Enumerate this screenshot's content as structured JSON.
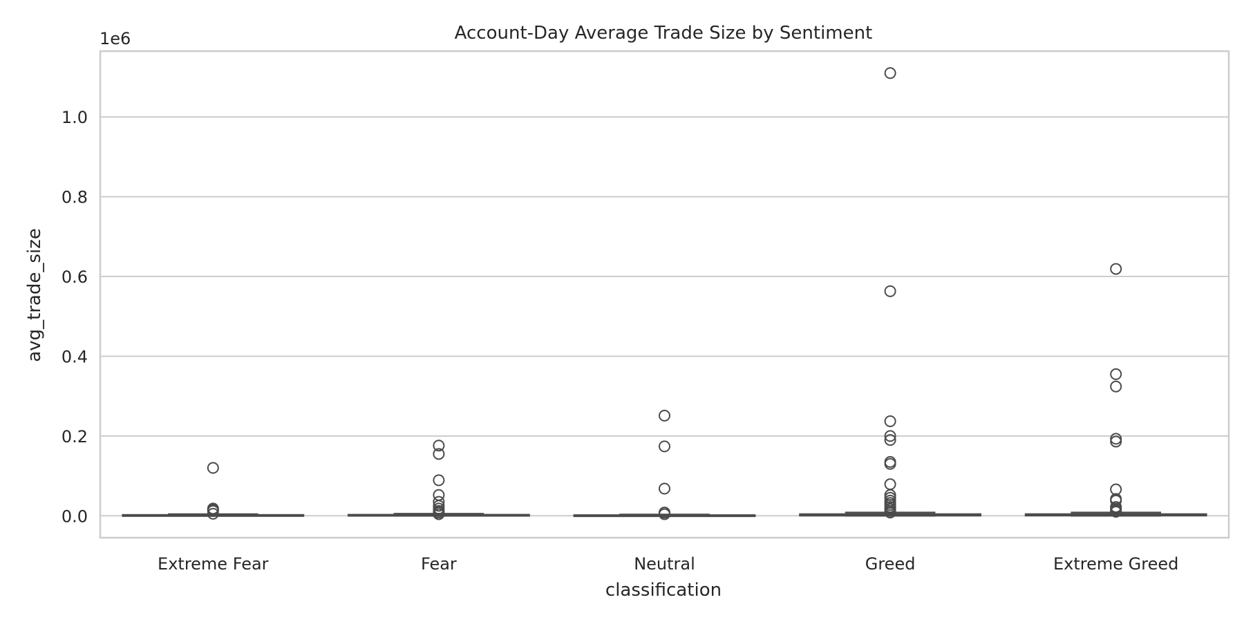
{
  "chart_data": {
    "type": "box",
    "title": "Account-Day Average Trade Size by Sentiment",
    "xlabel": "classification",
    "ylabel": "avg_trade_size",
    "y_offset_label": "1e6",
    "ylim": [
      -0.055,
      1.165
    ],
    "yticks": [
      0.0,
      0.2,
      0.4,
      0.6,
      0.8,
      1.0
    ],
    "ytick_labels": [
      "0.0",
      "0.2",
      "0.4",
      "0.6",
      "0.8",
      "1.0"
    ],
    "grid": true,
    "categories": [
      "Extreme Fear",
      "Fear",
      "Neutral",
      "Greed",
      "Extreme Greed"
    ],
    "boxes": [
      {
        "category": "Extreme Fear",
        "whisker_low": 0.0,
        "q1": 0.0003,
        "median": 0.0008,
        "q3": 0.002,
        "whisker_high": 0.004,
        "outliers": [
          0.12,
          0.018,
          0.015,
          0.012,
          0.005
        ]
      },
      {
        "category": "Fear",
        "whisker_low": 0.0,
        "q1": 0.0003,
        "median": 0.0009,
        "q3": 0.0025,
        "whisker_high": 0.005,
        "outliers": [
          0.176,
          0.155,
          0.089,
          0.052,
          0.035,
          0.025,
          0.018,
          0.012,
          0.008,
          0.004
        ]
      },
      {
        "category": "Neutral",
        "whisker_low": 0.0,
        "q1": 0.0002,
        "median": 0.0006,
        "q3": 0.0015,
        "whisker_high": 0.003,
        "outliers": [
          0.251,
          0.174,
          0.068,
          0.008,
          0.004
        ]
      },
      {
        "category": "Greed",
        "whisker_low": 0.0,
        "q1": 0.0004,
        "median": 0.0012,
        "q3": 0.004,
        "whisker_high": 0.008,
        "outliers": [
          1.11,
          0.563,
          0.237,
          0.2,
          0.19,
          0.135,
          0.13,
          0.079,
          0.052,
          0.045,
          0.038,
          0.032,
          0.027,
          0.022,
          0.017,
          0.012,
          0.008
        ]
      },
      {
        "category": "Extreme Greed",
        "whisker_low": 0.0,
        "q1": 0.0005,
        "median": 0.0015,
        "q3": 0.004,
        "whisker_high": 0.008,
        "outliers": [
          0.619,
          0.355,
          0.324,
          0.193,
          0.186,
          0.066,
          0.042,
          0.038,
          0.022,
          0.018,
          0.014,
          0.01
        ]
      }
    ]
  }
}
